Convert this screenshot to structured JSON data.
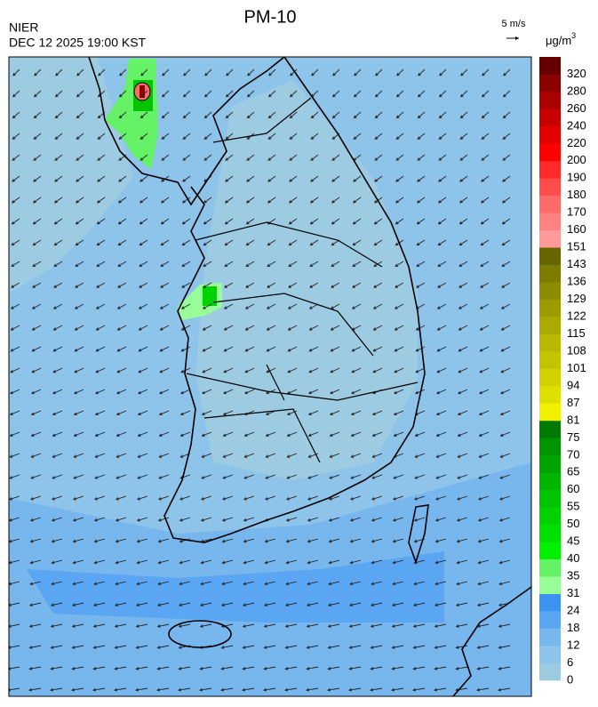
{
  "header": {
    "title": "PM-10",
    "agency": "NIER",
    "datetime": "DEC 12 2025 19:00 KST"
  },
  "wind_scale": {
    "label": "5 m/s"
  },
  "legend": {
    "unit": "μg/m",
    "unit_exponent": "3",
    "labels": [
      0,
      6,
      12,
      18,
      24,
      31,
      35,
      40,
      45,
      50,
      55,
      60,
      65,
      70,
      75,
      81,
      87,
      94,
      101,
      108,
      115,
      122,
      129,
      136,
      143,
      151,
      160,
      170,
      180,
      190,
      200,
      220,
      240,
      260,
      280,
      320
    ],
    "colors": [
      "#9ccbe2",
      "#8ec3ea",
      "#78b6ee",
      "#5ba6f2",
      "#3d92f0",
      "#98ff98",
      "#66f266",
      "#00f000",
      "#00e000",
      "#00d200",
      "#00c400",
      "#00b400",
      "#00a400",
      "#009400",
      "#007a00",
      "#f2f200",
      "#e0e000",
      "#d2d200",
      "#c4c400",
      "#b8b800",
      "#aaaa00",
      "#9c9c00",
      "#8c8c00",
      "#7c7c00",
      "#666600",
      "#ff9a9a",
      "#ff8282",
      "#ff6a6a",
      "#ff4c4c",
      "#ff2a2a",
      "#ff0000",
      "#e40000",
      "#c80000",
      "#aa0000",
      "#8a0000",
      "#660000"
    ]
  }
}
